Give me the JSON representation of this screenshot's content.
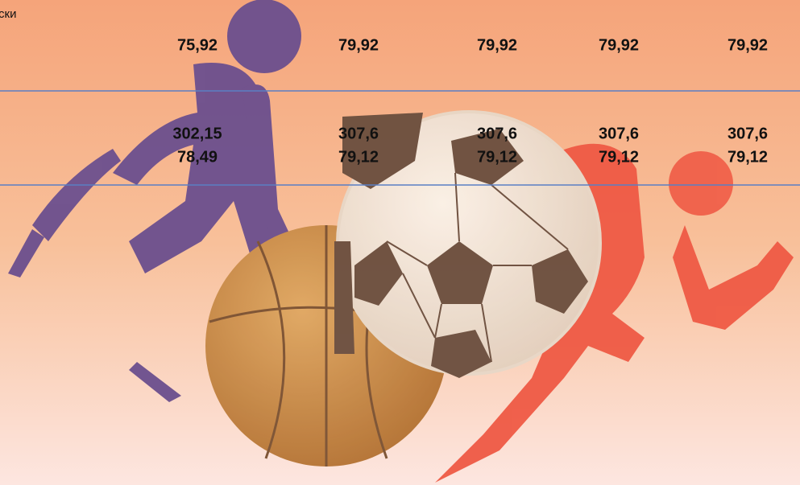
{
  "header": "ски",
  "table": {
    "rows": [
      [
        "75,92",
        "79,92",
        "79,92",
        "79,92",
        "79,92"
      ],
      [
        [
          "302,15",
          "78,49"
        ],
        [
          "307,6",
          "79,12"
        ],
        [
          "307,6",
          "79,12"
        ],
        [
          "307,6",
          "79,12"
        ],
        [
          "307,6",
          "79,12"
        ]
      ]
    ]
  }
}
